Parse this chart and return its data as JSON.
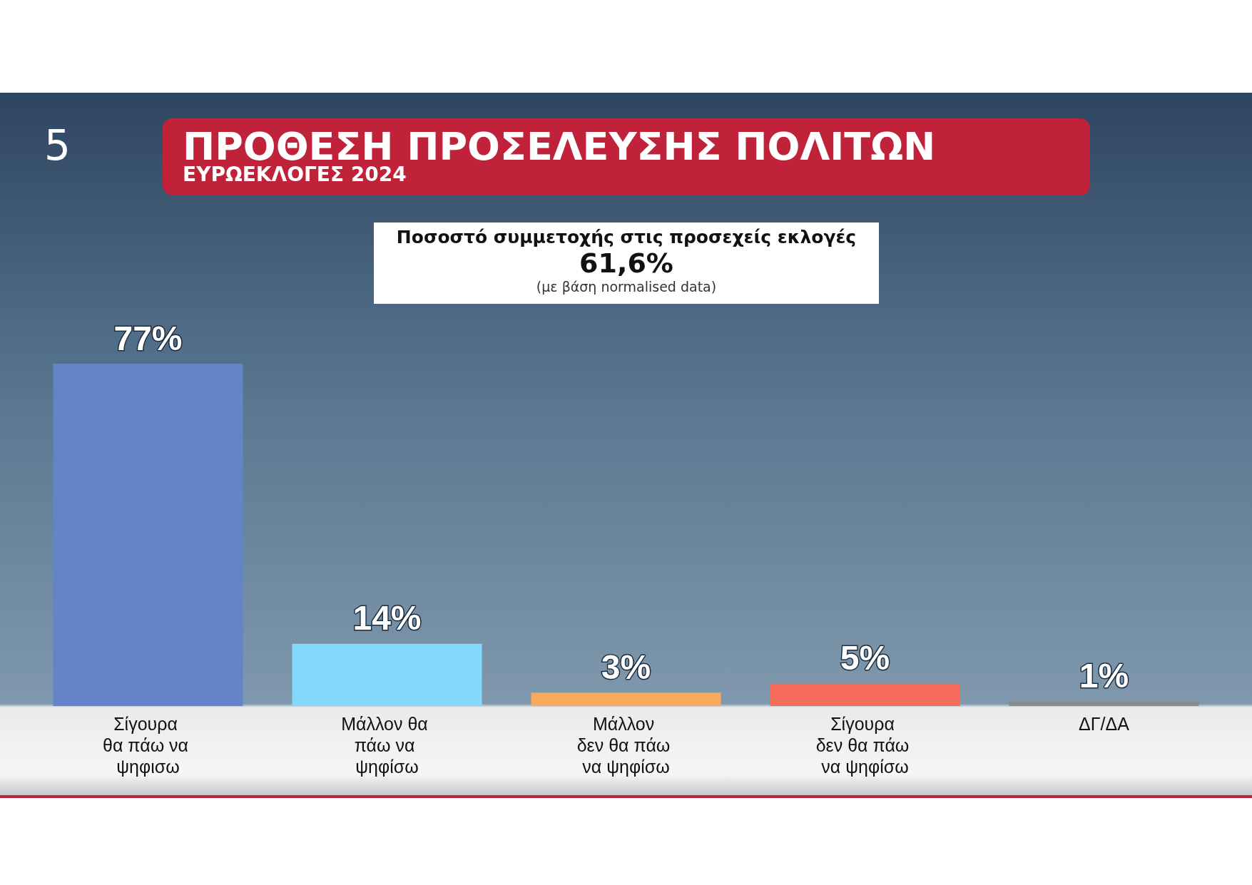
{
  "chart_data": {
    "type": "bar",
    "title": "ΠΡΟΘΕΣΗ ΠΡΟΣΕΛΕΥΣΗΣ ΠΟΛΙΤΩΝ",
    "subtitle": "ΕΥΡΩΕΚΛΟΓΕΣ 2024",
    "annotations": [
      "5",
      "Ποσοστό συμμετοχής στις προσεχείς εκλογές",
      "61,6%",
      "(με βάση normalised data)"
    ],
    "categories": [
      "Σίγουρα θα πάω να ψηφισω",
      "Μάλλον θα πάω να ψηφίσω",
      "Μάλλον δεν θα πάω να ψηφίσω",
      "Σίγουρα δεν θα πάω να ψηφίσω",
      "ΔΓ/ΔΑ"
    ],
    "values": [
      77,
      14,
      3,
      5,
      1
    ],
    "colors": [
      "#6483c8",
      "#84d8fb",
      "#f9a95a",
      "#f56c5a",
      "#8a8a8a"
    ],
    "value_labels": [
      "77%",
      "14%",
      "3%",
      "5%",
      "1%"
    ]
  }
}
